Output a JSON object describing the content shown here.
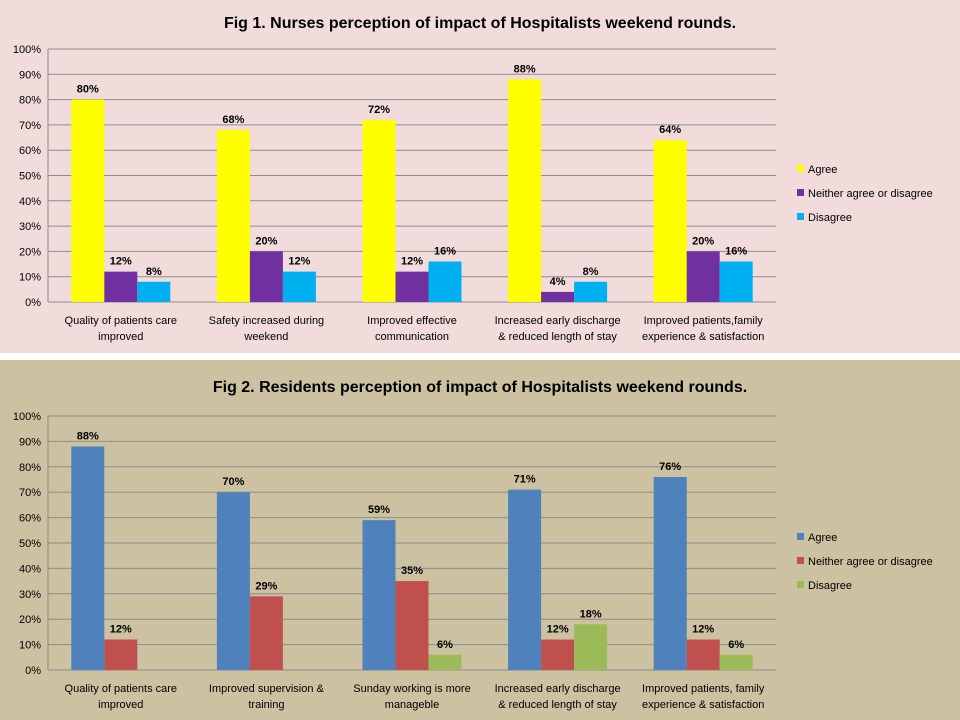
{
  "chart_data": [
    {
      "type": "bar",
      "title": "Fig 1. Nurses perception of impact of Hospitalists weekend rounds.",
      "categories": [
        [
          "Quality of patients care",
          "improved"
        ],
        [
          "Safety increased during",
          "weekend"
        ],
        [
          "Improved effective",
          "communication"
        ],
        [
          "Increased early discharge",
          "& reduced length of stay"
        ],
        [
          "Improved patients,family",
          "experience & satisfaction"
        ]
      ],
      "series": [
        {
          "name": "Agree",
          "values": [
            80,
            68,
            72,
            88,
            64
          ],
          "color": "#ffff00"
        },
        {
          "name": "Neither agree or disagree",
          "values": [
            12,
            20,
            12,
            4,
            20
          ],
          "color": "#7030a0"
        },
        {
          "name": "Disagree",
          "values": [
            8,
            12,
            16,
            8,
            16
          ],
          "color": "#00b0f0"
        }
      ],
      "y_ticks": [
        "0%",
        "10%",
        "20%",
        "30%",
        "40%",
        "50%",
        "60%",
        "70%",
        "80%",
        "90%",
        "100%"
      ],
      "ylim": [
        0,
        100
      ],
      "grid": true,
      "legend": "right",
      "background": "#f2dcdb"
    },
    {
      "type": "bar",
      "title": "Fig 2. Residents perception of impact of Hospitalists weekend rounds.",
      "categories": [
        [
          "Quality of patients care",
          "improved"
        ],
        [
          "Improved supervision &",
          "training"
        ],
        [
          "Sunday working is more",
          "manageble"
        ],
        [
          "Increased early discharge",
          "& reduced length of stay"
        ],
        [
          "Improved patients, family",
          "experience & satisfaction"
        ]
      ],
      "series": [
        {
          "name": "Agree",
          "values": [
            88,
            70,
            59,
            71,
            76
          ],
          "color": "#4f81bd"
        },
        {
          "name": "Neither agree or disagree",
          "values": [
            12,
            29,
            35,
            12,
            12
          ],
          "color": "#c0504d"
        },
        {
          "name": "Disagree",
          "values": [
            null,
            null,
            6,
            18,
            6
          ],
          "color": "#9bbb59"
        }
      ],
      "y_ticks": [
        "0%",
        "10%",
        "20%",
        "30%",
        "40%",
        "50%",
        "60%",
        "70%",
        "80%",
        "90%",
        "100%"
      ],
      "ylim": [
        0,
        100
      ],
      "grid": true,
      "legend": "right",
      "background": "#ccc1a0"
    }
  ]
}
